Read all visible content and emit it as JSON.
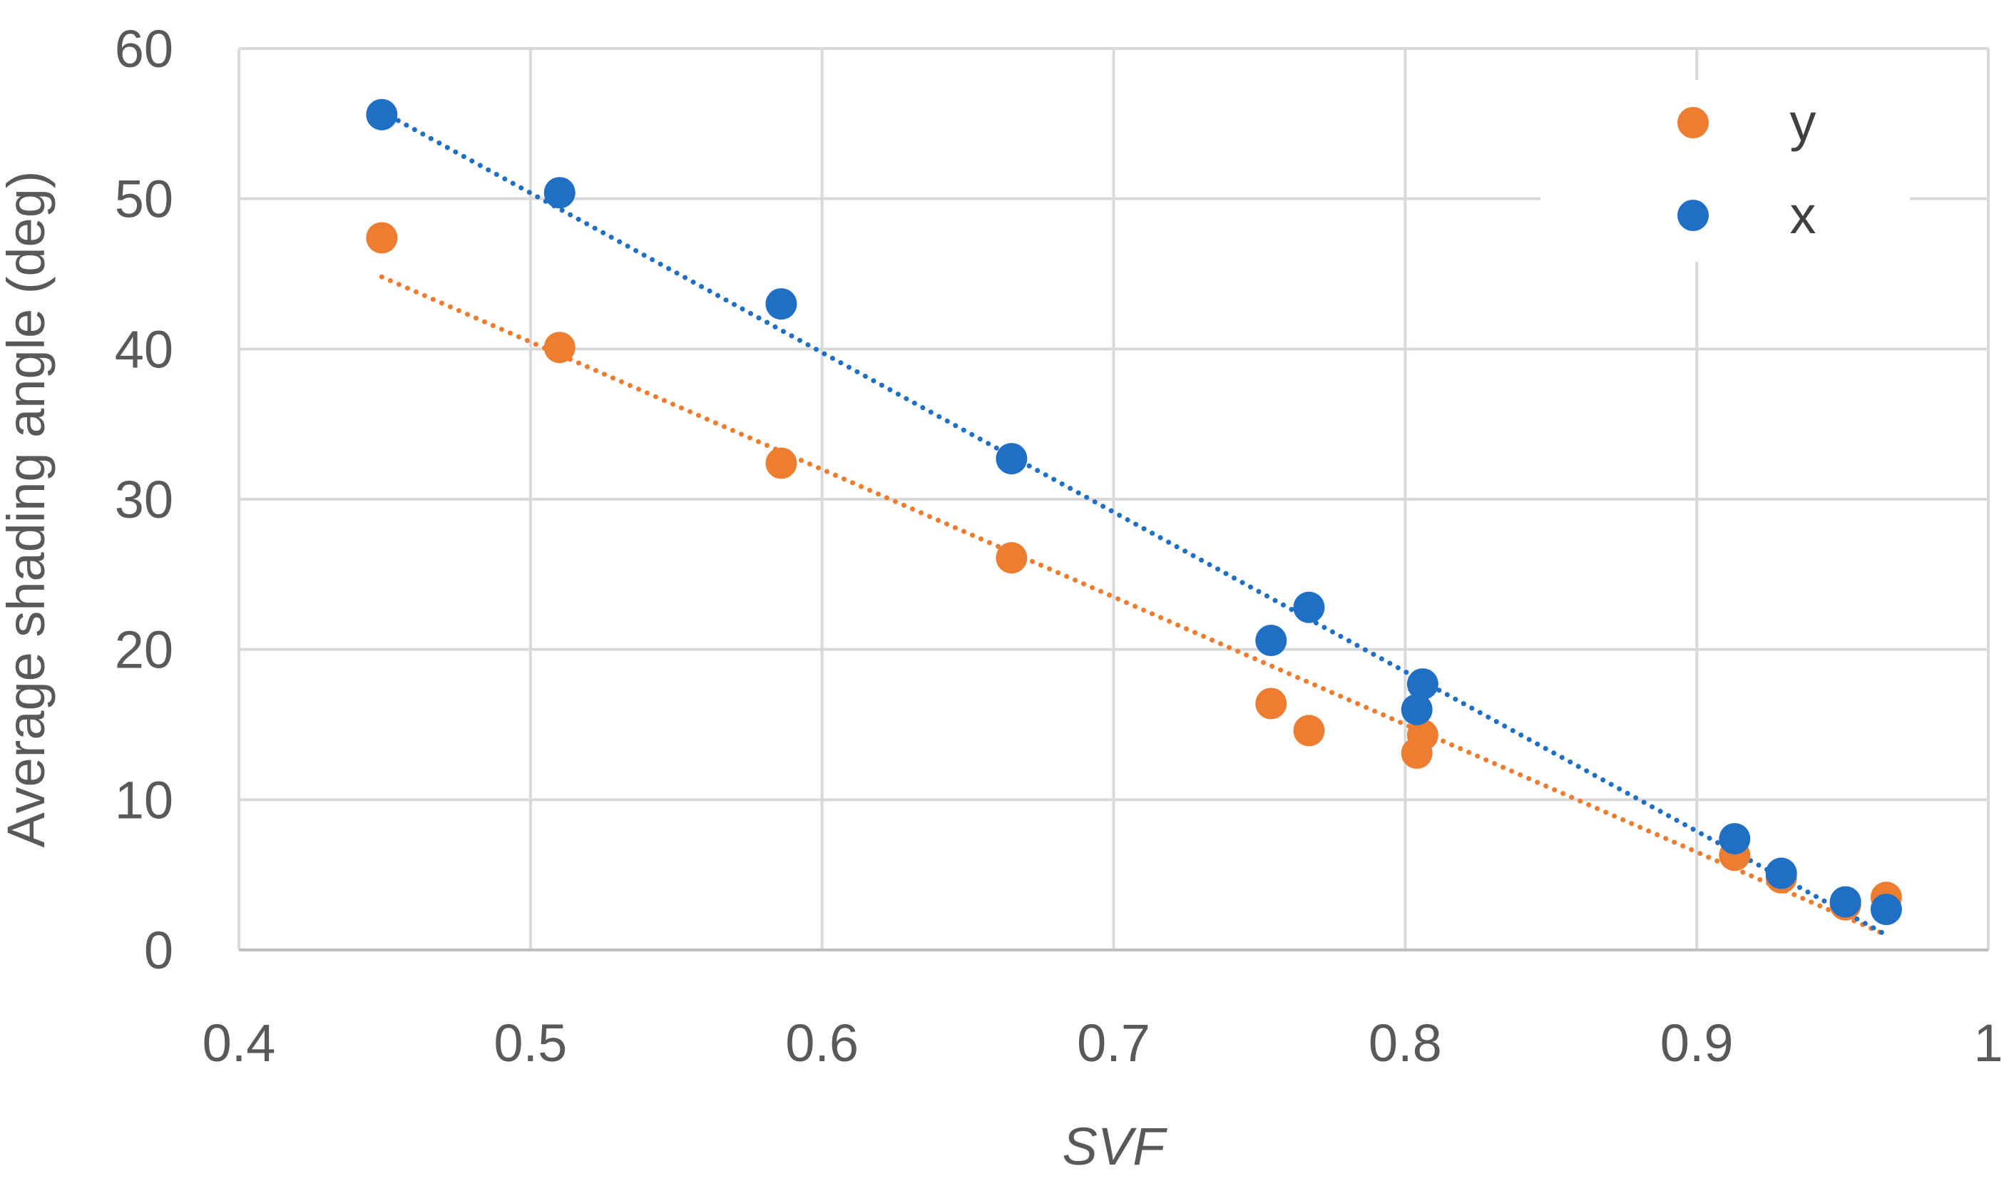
{
  "chart_data": {
    "type": "scatter",
    "title": "",
    "xlabel": "SVF",
    "ylabel": "Average shading angle (deg)",
    "xlim": [
      0.4,
      1
    ],
    "ylim": [
      0,
      60
    ],
    "xticks": [
      0.4,
      0.5,
      0.6,
      0.7,
      0.8,
      0.9,
      1
    ],
    "xtick_labels": [
      "0.4",
      "0.5",
      "0.6",
      "0.7",
      "0.8",
      "0.9",
      "1"
    ],
    "yticks": [
      0,
      10,
      20,
      30,
      40,
      50,
      60
    ],
    "ytick_labels": [
      "0",
      "10",
      "20",
      "30",
      "40",
      "50",
      "60"
    ],
    "grid": true,
    "legend_position": "top-right",
    "series": [
      {
        "name": "y",
        "color": "#ED7D31",
        "x": [
          0.449,
          0.51,
          0.586,
          0.665,
          0.754,
          0.767,
          0.804,
          0.806,
          0.913,
          0.929,
          0.951,
          0.965
        ],
        "y": [
          47.4,
          40.1,
          32.4,
          26.1,
          16.4,
          14.6,
          13.1,
          14.3,
          6.3,
          4.8,
          3.0,
          3.5
        ],
        "trendline": {
          "style": "dotted",
          "x": [
            0.449,
            0.965
          ],
          "y": [
            44.8,
            1.0
          ]
        }
      },
      {
        "name": "x",
        "color": "#1F6FC5",
        "x": [
          0.449,
          0.51,
          0.586,
          0.665,
          0.754,
          0.767,
          0.804,
          0.806,
          0.913,
          0.929,
          0.951,
          0.965
        ],
        "y": [
          55.6,
          50.4,
          43.0,
          32.7,
          20.6,
          22.8,
          16.0,
          17.7,
          7.4,
          5.1,
          3.2,
          2.7
        ],
        "trendline": {
          "style": "dotted",
          "x": [
            0.449,
            0.965
          ],
          "y": [
            55.8,
            1.0
          ]
        }
      }
    ]
  }
}
